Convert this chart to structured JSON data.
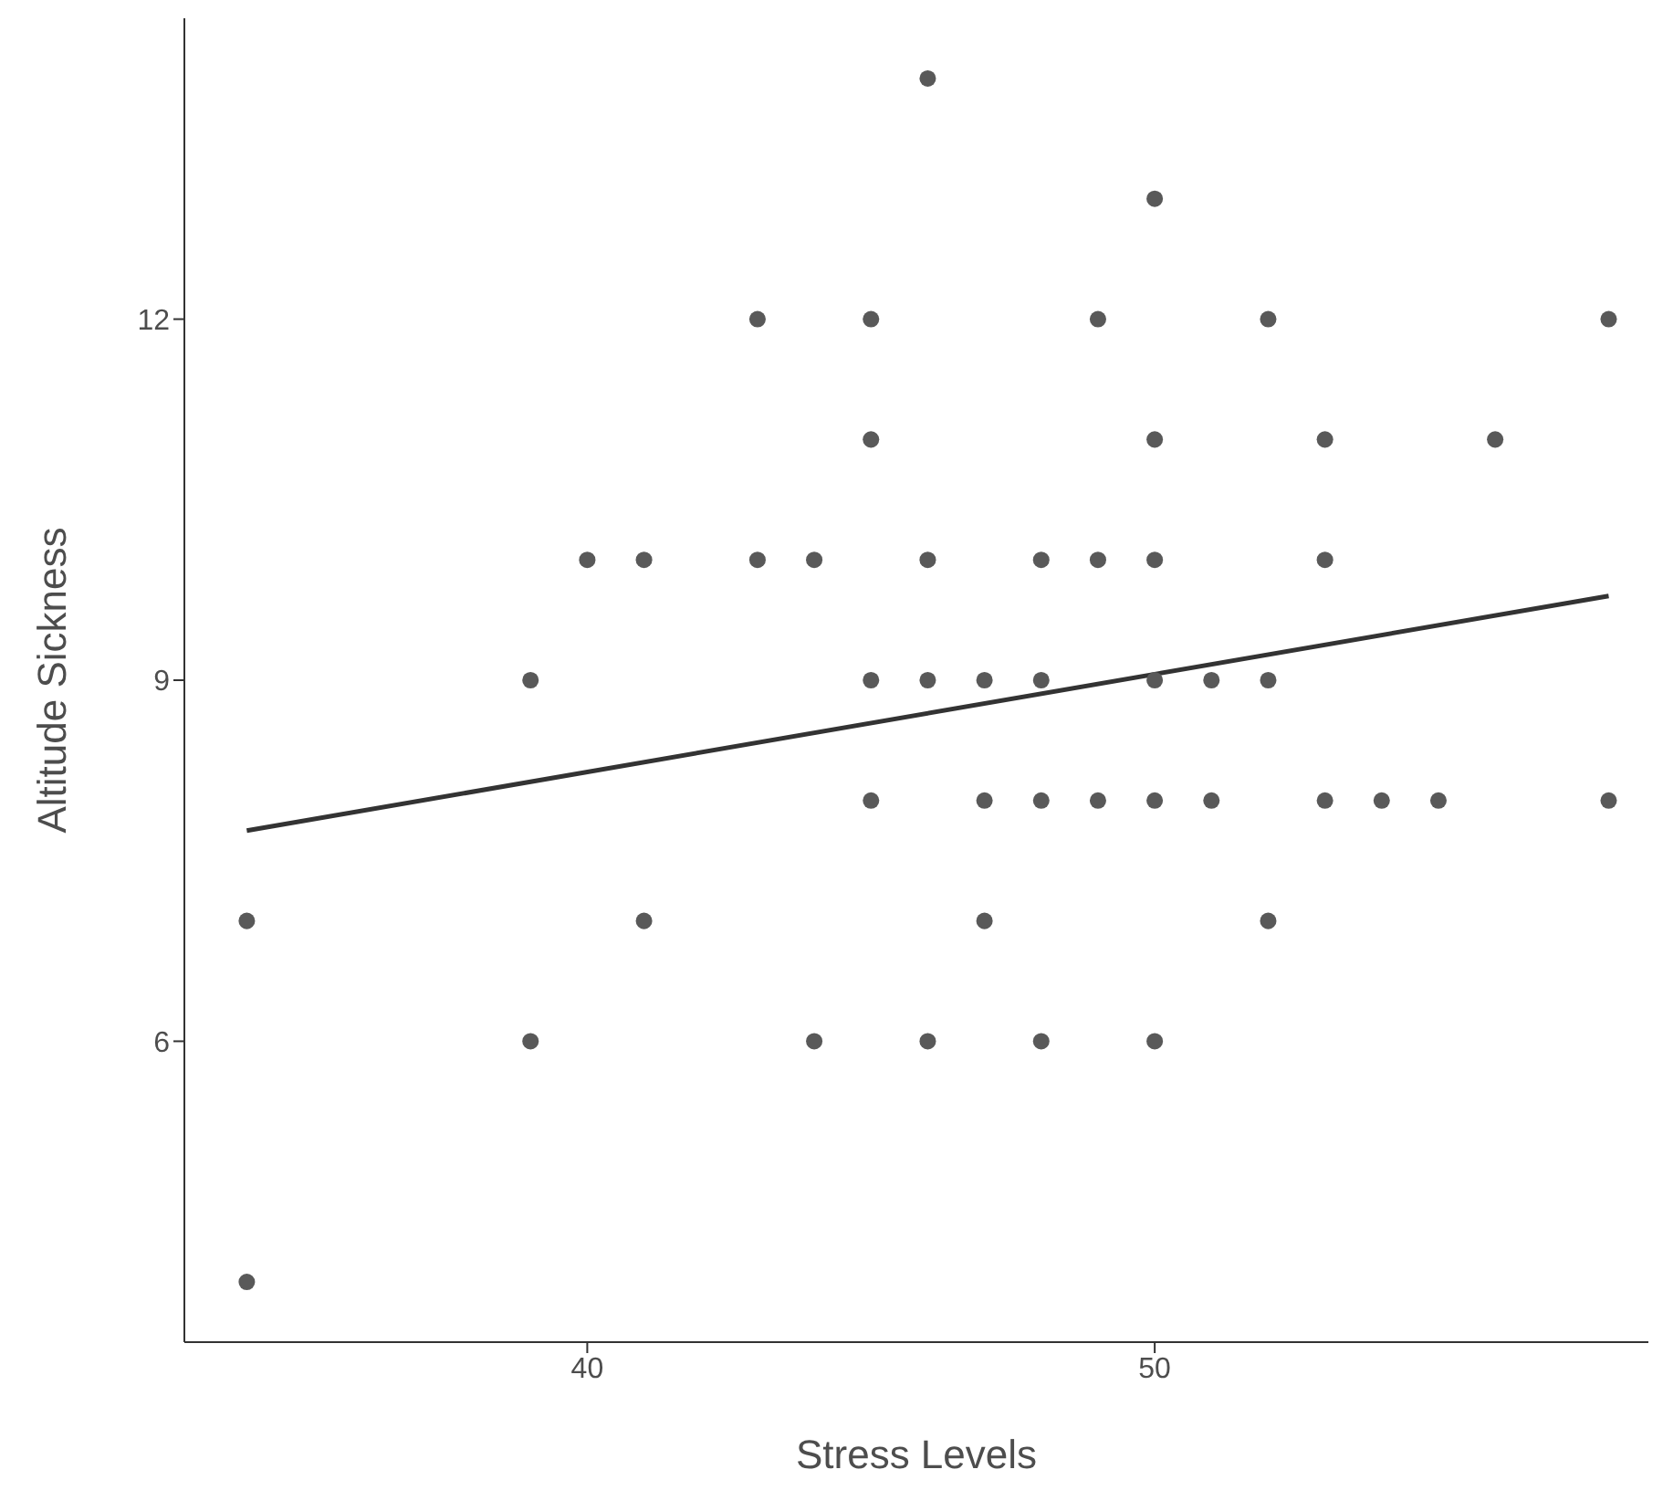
{
  "chart_data": {
    "type": "scatter",
    "xlabel": "Stress Levels",
    "ylabel": "Altitude Sickness",
    "xlim": [
      32.9,
      58.7
    ],
    "xticks": [
      40,
      50
    ],
    "ylim": [
      3.5,
      14.5
    ],
    "yticks": [
      6,
      9,
      12
    ],
    "series": [
      {
        "marker": "circle",
        "color": "#595959",
        "x": [
          34,
          34,
          39,
          39,
          40,
          41,
          41,
          43,
          43,
          44,
          44,
          45,
          45,
          45,
          45,
          46,
          46,
          46,
          46,
          47,
          47,
          47,
          48,
          48,
          48,
          48,
          49,
          49,
          49,
          50,
          50,
          50,
          50,
          50,
          50,
          51,
          51,
          52,
          52,
          52,
          53,
          53,
          53,
          54,
          55,
          56,
          58,
          58
        ],
        "values": [
          7,
          4,
          9,
          6,
          10,
          10,
          7,
          12,
          10,
          10,
          6,
          12,
          11,
          9,
          8,
          14,
          10,
          9,
          6,
          9,
          8,
          7,
          10,
          9,
          8,
          6,
          12,
          10,
          8,
          13,
          11,
          10,
          9,
          8,
          6,
          9,
          8,
          12,
          9,
          7,
          11,
          10,
          8,
          8,
          8,
          11,
          12,
          8
        ]
      },
      {
        "type": "line",
        "marker": "none",
        "color": "#333333",
        "x": [
          34,
          58
        ],
        "values": [
          7.75,
          9.7
        ]
      }
    ]
  }
}
